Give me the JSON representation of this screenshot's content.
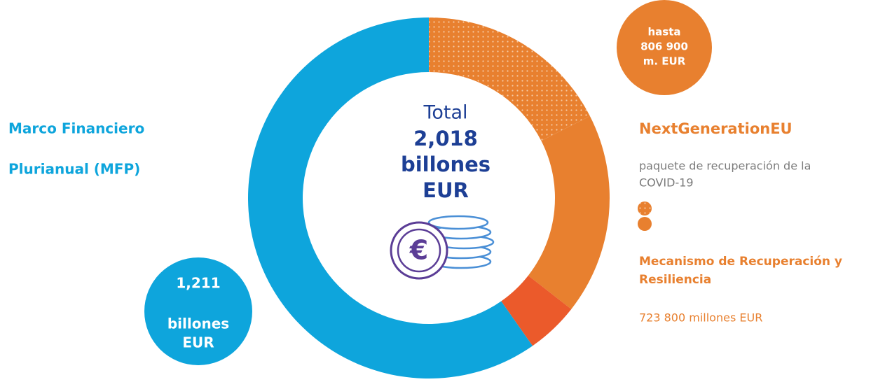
{
  "left_label": [
    "Marco Financiero",
    "Plurianual (MFP)"
  ],
  "center": {
    "title": "Total",
    "amount": [
      "2,018",
      "billones",
      "EUR"
    ]
  },
  "mfp_badge": [
    "1,211",
    "billones",
    "EUR"
  ],
  "ngeu_badge": [
    "hasta",
    "806 900",
    "m. EUR"
  ],
  "ngeu": {
    "title": "NextGenerationEU",
    "description": [
      "paquete de recuperación de la",
      "COVID-19"
    ]
  },
  "rrf": {
    "title": [
      "Mecanismo de Recuperación y",
      "Resiliencia"
    ],
    "amount": "723 800 millones EUR"
  }
}
